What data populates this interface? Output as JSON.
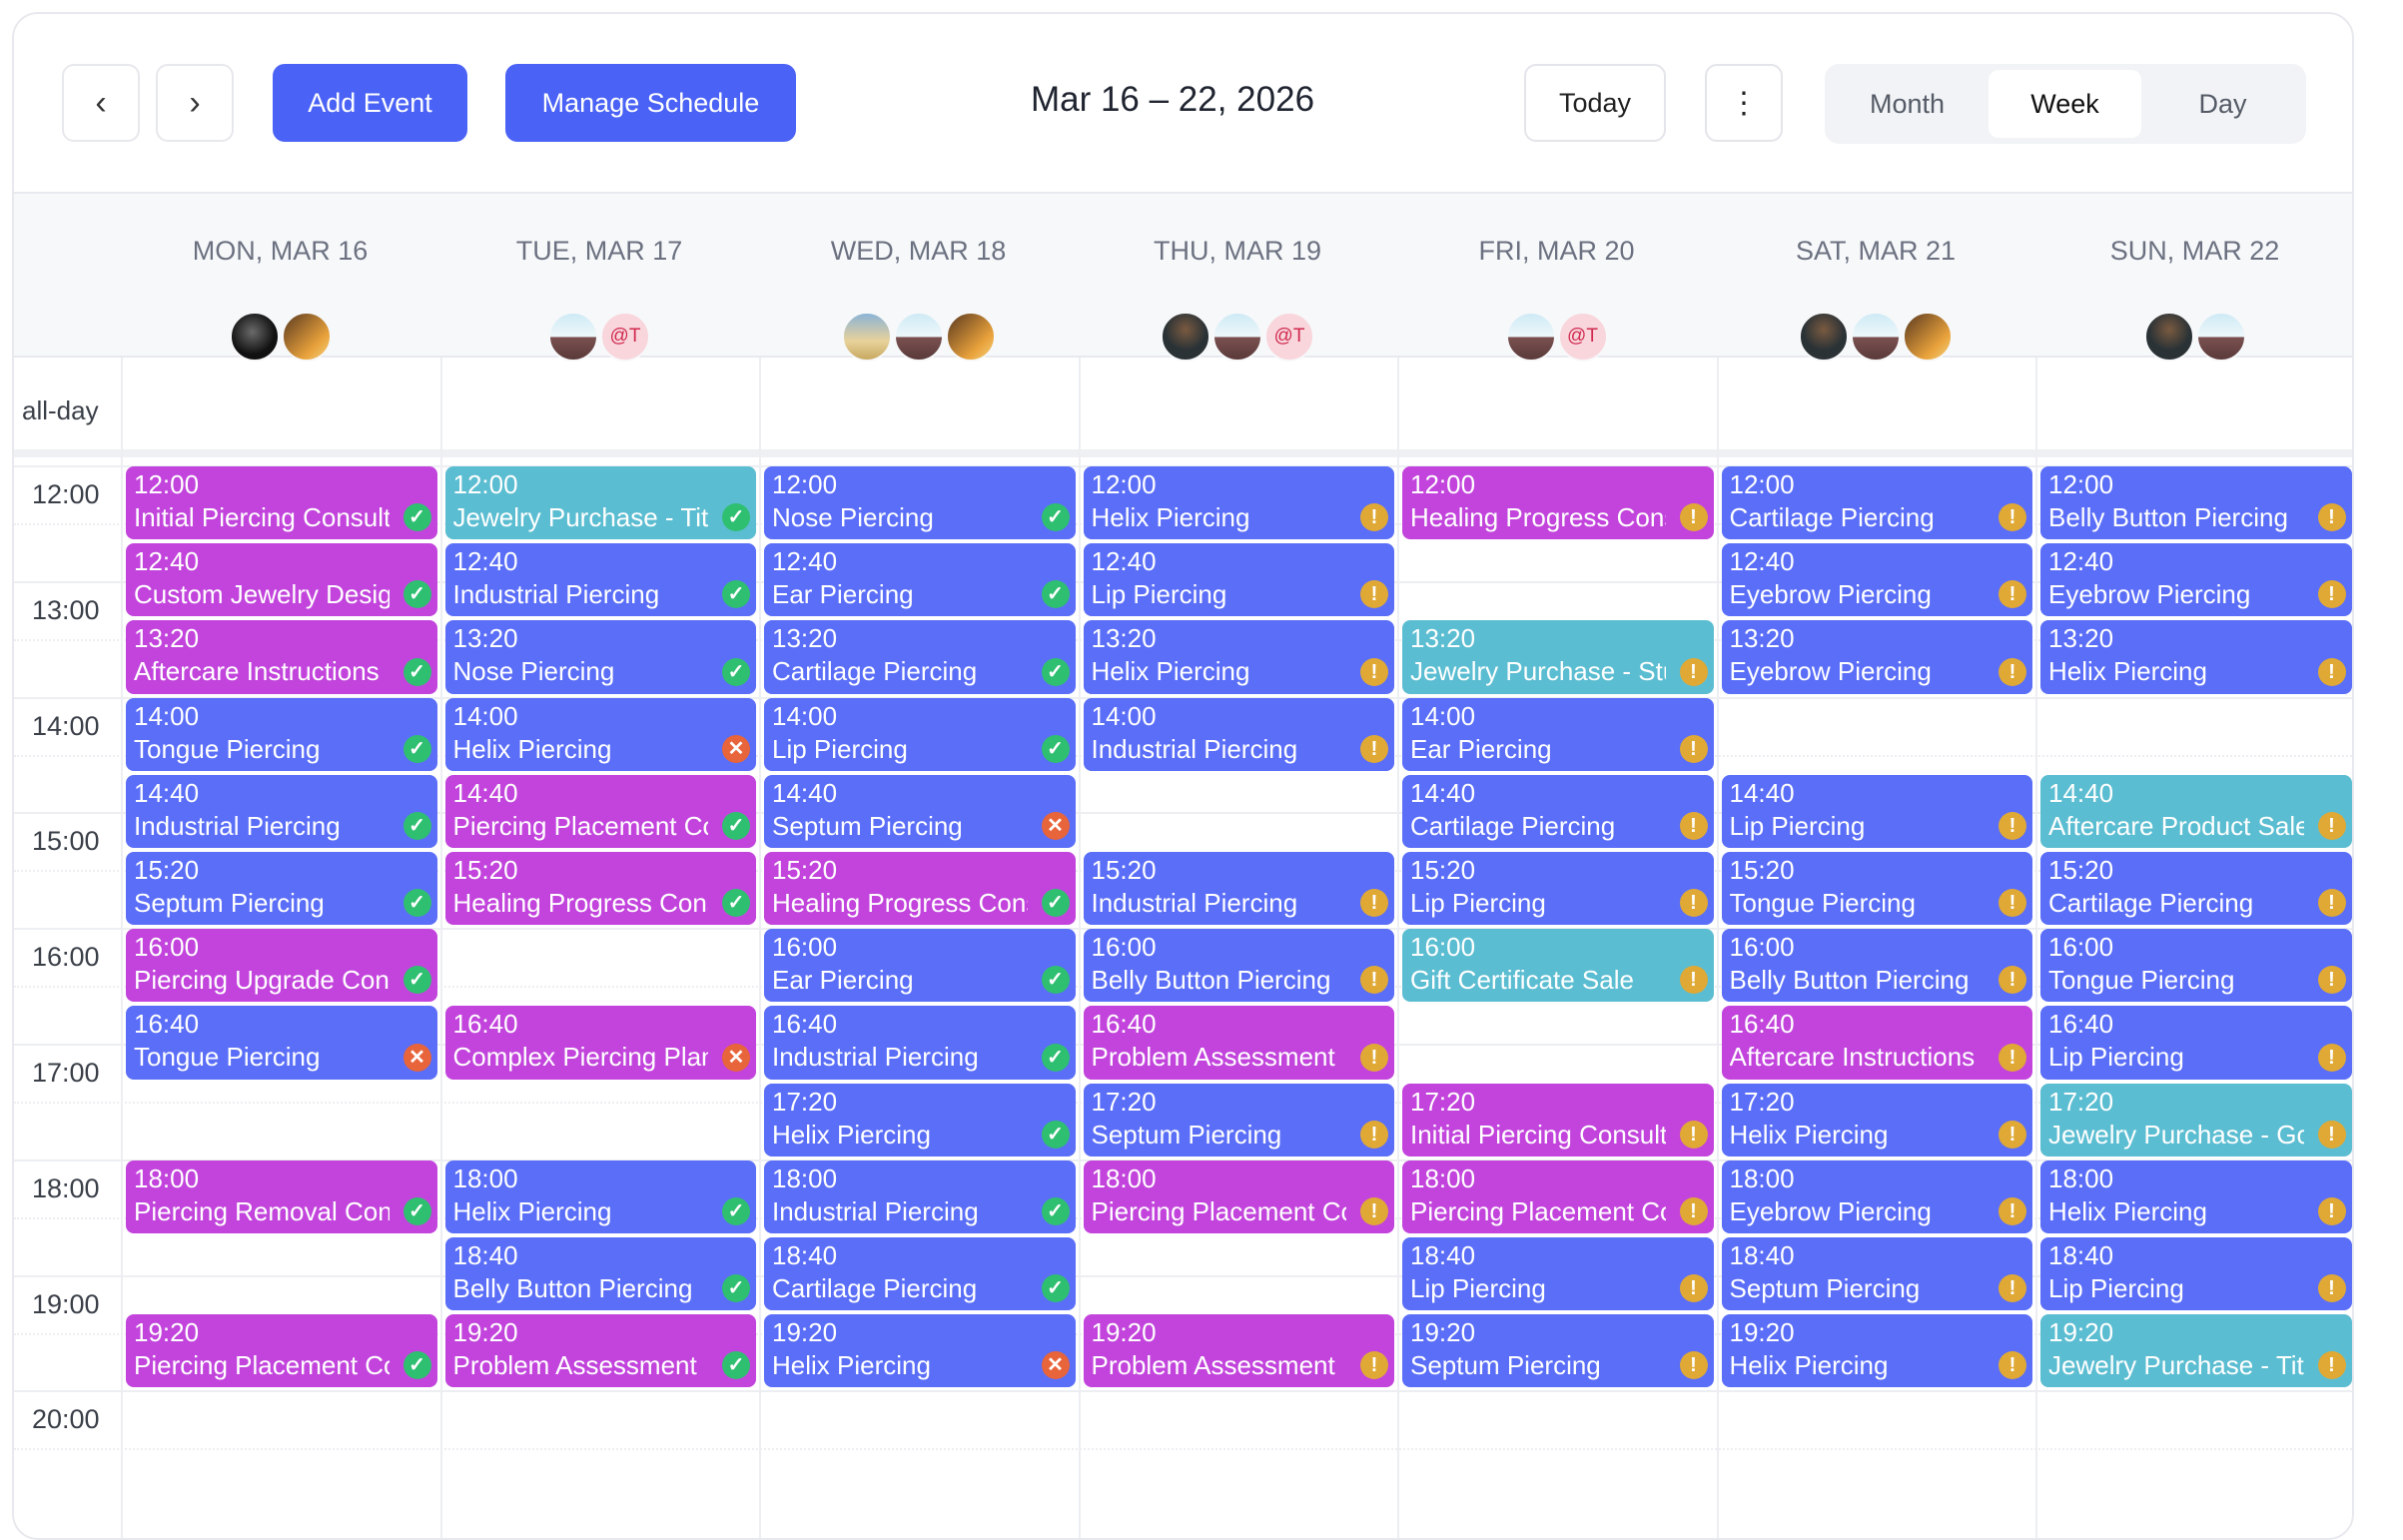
{
  "toolbar": {
    "prev_icon": "chevron-left-icon",
    "next_icon": "chevron-right-icon",
    "add_event": "Add Event",
    "manage_schedule": "Manage Schedule",
    "range_title": "Mar 16 – 22, 2026",
    "today": "Today",
    "more_icon": "kebab-icon",
    "views": [
      "Month",
      "Week",
      "Day"
    ],
    "active_view": "Week"
  },
  "colors": {
    "primary": "#4a62f5",
    "blue": "#5a6ef8",
    "magenta": "#c244dc",
    "teal": "#5bbdd1",
    "confirmed": "#2fbf71",
    "cancelled": "#e8643a",
    "pending": "#e0a935"
  },
  "all_day_label": "all-day",
  "hours": [
    "12:00",
    "13:00",
    "14:00",
    "15:00",
    "16:00",
    "17:00",
    "18:00",
    "19:00",
    "20:00"
  ],
  "days": [
    {
      "label": "MON, MAR 16",
      "avatars": [
        {
          "type": "dark"
        },
        {
          "type": "warm"
        }
      ],
      "events": [
        {
          "time": "12:00",
          "title": "Initial Piercing Consultation",
          "color": "magenta",
          "status": "confirmed"
        },
        {
          "time": "12:40",
          "title": "Custom Jewelry Design Consultation",
          "color": "magenta",
          "status": "confirmed"
        },
        {
          "time": "13:20",
          "title": "Aftercare Instructions",
          "color": "magenta",
          "status": "confirmed"
        },
        {
          "time": "14:00",
          "title": "Tongue Piercing",
          "color": "blue",
          "status": "confirmed"
        },
        {
          "time": "14:40",
          "title": "Industrial Piercing",
          "color": "blue",
          "status": "confirmed"
        },
        {
          "time": "15:20",
          "title": "Septum Piercing",
          "color": "blue",
          "status": "confirmed"
        },
        {
          "time": "16:00",
          "title": "Piercing Upgrade Consultation",
          "color": "magenta",
          "status": "confirmed"
        },
        {
          "time": "16:40",
          "title": "Tongue Piercing",
          "color": "blue",
          "status": "cancelled"
        },
        {
          "time": "18:00",
          "title": "Piercing Removal Consultation",
          "color": "magenta",
          "status": "confirmed"
        },
        {
          "time": "19:20",
          "title": "Piercing Placement Consultation",
          "color": "magenta",
          "status": "confirmed"
        }
      ]
    },
    {
      "label": "TUE, MAR 17",
      "avatars": [
        {
          "type": "sky"
        },
        {
          "type": "at",
          "text": "@T"
        }
      ],
      "events": [
        {
          "time": "12:00",
          "title": "Jewelry Purchase - Titanium",
          "color": "teal",
          "status": "confirmed"
        },
        {
          "time": "12:40",
          "title": "Industrial Piercing",
          "color": "blue",
          "status": "confirmed"
        },
        {
          "time": "13:20",
          "title": "Nose Piercing",
          "color": "blue",
          "status": "confirmed"
        },
        {
          "time": "14:00",
          "title": "Helix Piercing",
          "color": "blue",
          "status": "cancelled"
        },
        {
          "time": "14:40",
          "title": "Piercing Placement Consultation",
          "color": "magenta",
          "status": "confirmed"
        },
        {
          "time": "15:20",
          "title": "Healing Progress Consultation",
          "color": "magenta",
          "status": "confirmed"
        },
        {
          "time": "16:40",
          "title": "Complex Piercing Planning",
          "color": "magenta",
          "status": "cancelled"
        },
        {
          "time": "18:00",
          "title": "Helix Piercing",
          "color": "blue",
          "status": "confirmed"
        },
        {
          "time": "18:40",
          "title": "Belly Button Piercing",
          "color": "blue",
          "status": "confirmed"
        },
        {
          "time": "19:20",
          "title": "Problem Assessment",
          "color": "magenta",
          "status": "confirmed"
        }
      ]
    },
    {
      "label": "WED, MAR 18",
      "avatars": [
        {
          "type": "person"
        },
        {
          "type": "sky"
        },
        {
          "type": "warm"
        }
      ],
      "events": [
        {
          "time": "12:00",
          "title": "Nose Piercing",
          "color": "blue",
          "status": "confirmed"
        },
        {
          "time": "12:40",
          "title": "Ear Piercing",
          "color": "blue",
          "status": "confirmed"
        },
        {
          "time": "13:20",
          "title": "Cartilage Piercing",
          "color": "blue",
          "status": "confirmed"
        },
        {
          "time": "14:00",
          "title": "Lip Piercing",
          "color": "blue",
          "status": "confirmed"
        },
        {
          "time": "14:40",
          "title": "Septum Piercing",
          "color": "blue",
          "status": "cancelled"
        },
        {
          "time": "15:20",
          "title": "Healing Progress Consultation",
          "color": "magenta",
          "status": "confirmed"
        },
        {
          "time": "16:00",
          "title": "Ear Piercing",
          "color": "blue",
          "status": "confirmed"
        },
        {
          "time": "16:40",
          "title": "Industrial Piercing",
          "color": "blue",
          "status": "confirmed"
        },
        {
          "time": "17:20",
          "title": "Helix Piercing",
          "color": "blue",
          "status": "confirmed"
        },
        {
          "time": "18:00",
          "title": "Industrial Piercing",
          "color": "blue",
          "status": "confirmed"
        },
        {
          "time": "18:40",
          "title": "Cartilage Piercing",
          "color": "blue",
          "status": "confirmed"
        },
        {
          "time": "19:20",
          "title": "Helix Piercing",
          "color": "blue",
          "status": "cancelled"
        }
      ]
    },
    {
      "label": "THU, MAR 19",
      "avatars": [
        {
          "type": "darkperson"
        },
        {
          "type": "sky"
        },
        {
          "type": "at",
          "text": "@T"
        }
      ],
      "events": [
        {
          "time": "12:00",
          "title": "Helix Piercing",
          "color": "blue",
          "status": "pending"
        },
        {
          "time": "12:40",
          "title": "Lip Piercing",
          "color": "blue",
          "status": "pending"
        },
        {
          "time": "13:20",
          "title": "Helix Piercing",
          "color": "blue",
          "status": "pending"
        },
        {
          "time": "14:00",
          "title": "Industrial Piercing",
          "color": "blue",
          "status": "pending"
        },
        {
          "time": "15:20",
          "title": "Industrial Piercing",
          "color": "blue",
          "status": "pending"
        },
        {
          "time": "16:00",
          "title": "Belly Button Piercing",
          "color": "blue",
          "status": "pending"
        },
        {
          "time": "16:40",
          "title": "Problem Assessment",
          "color": "magenta",
          "status": "pending"
        },
        {
          "time": "17:20",
          "title": "Septum Piercing",
          "color": "blue",
          "status": "pending"
        },
        {
          "time": "18:00",
          "title": "Piercing Placement Consultation",
          "color": "magenta",
          "status": "pending"
        },
        {
          "time": "19:20",
          "title": "Problem Assessment",
          "color": "magenta",
          "status": "pending"
        }
      ]
    },
    {
      "label": "FRI, MAR 20",
      "avatars": [
        {
          "type": "sky"
        },
        {
          "type": "at",
          "text": "@T"
        }
      ],
      "events": [
        {
          "time": "12:00",
          "title": "Healing Progress Consultation",
          "color": "magenta",
          "status": "pending"
        },
        {
          "time": "13:20",
          "title": "Jewelry Purchase - Stud",
          "color": "teal",
          "status": "pending"
        },
        {
          "time": "14:00",
          "title": "Ear Piercing",
          "color": "blue",
          "status": "pending"
        },
        {
          "time": "14:40",
          "title": "Cartilage Piercing",
          "color": "blue",
          "status": "pending"
        },
        {
          "time": "15:20",
          "title": "Lip Piercing",
          "color": "blue",
          "status": "pending"
        },
        {
          "time": "16:00",
          "title": "Gift Certificate Sale",
          "color": "teal",
          "status": "pending"
        },
        {
          "time": "17:20",
          "title": "Initial Piercing Consultation",
          "color": "magenta",
          "status": "pending"
        },
        {
          "time": "18:00",
          "title": "Piercing Placement Consultation",
          "color": "magenta",
          "status": "pending"
        },
        {
          "time": "18:40",
          "title": "Lip Piercing",
          "color": "blue",
          "status": "pending"
        },
        {
          "time": "19:20",
          "title": "Septum Piercing",
          "color": "blue",
          "status": "pending"
        }
      ]
    },
    {
      "label": "SAT, MAR 21",
      "avatars": [
        {
          "type": "darkperson"
        },
        {
          "type": "sky"
        },
        {
          "type": "warm"
        }
      ],
      "events": [
        {
          "time": "12:00",
          "title": "Cartilage Piercing",
          "color": "blue",
          "status": "pending"
        },
        {
          "time": "12:40",
          "title": "Eyebrow Piercing",
          "color": "blue",
          "status": "pending"
        },
        {
          "time": "13:20",
          "title": "Eyebrow Piercing",
          "color": "blue",
          "status": "pending"
        },
        {
          "time": "14:40",
          "title": "Lip Piercing",
          "color": "blue",
          "status": "pending"
        },
        {
          "time": "15:20",
          "title": "Tongue Piercing",
          "color": "blue",
          "status": "pending"
        },
        {
          "time": "16:00",
          "title": "Belly Button Piercing",
          "color": "blue",
          "status": "pending"
        },
        {
          "time": "16:40",
          "title": "Aftercare Instructions",
          "color": "magenta",
          "status": "pending"
        },
        {
          "time": "17:20",
          "title": "Helix Piercing",
          "color": "blue",
          "status": "pending"
        },
        {
          "time": "18:00",
          "title": "Eyebrow Piercing",
          "color": "blue",
          "status": "pending"
        },
        {
          "time": "18:40",
          "title": "Septum Piercing",
          "color": "blue",
          "status": "pending"
        },
        {
          "time": "19:20",
          "title": "Helix Piercing",
          "color": "blue",
          "status": "pending"
        }
      ]
    },
    {
      "label": "SUN, MAR 22",
      "avatars": [
        {
          "type": "darkperson"
        },
        {
          "type": "sky"
        }
      ],
      "events": [
        {
          "time": "12:00",
          "title": "Belly Button Piercing",
          "color": "blue",
          "status": "pending"
        },
        {
          "time": "12:40",
          "title": "Eyebrow Piercing",
          "color": "blue",
          "status": "pending"
        },
        {
          "time": "13:20",
          "title": "Helix Piercing",
          "color": "blue",
          "status": "pending"
        },
        {
          "time": "14:40",
          "title": "Aftercare Product Sale",
          "color": "teal",
          "status": "pending"
        },
        {
          "time": "15:20",
          "title": "Cartilage Piercing",
          "color": "blue",
          "status": "pending"
        },
        {
          "time": "16:00",
          "title": "Tongue Piercing",
          "color": "blue",
          "status": "pending"
        },
        {
          "time": "16:40",
          "title": "Lip Piercing",
          "color": "blue",
          "status": "pending"
        },
        {
          "time": "17:20",
          "title": "Jewelry Purchase - Gold",
          "color": "teal",
          "status": "pending"
        },
        {
          "time": "18:00",
          "title": "Helix Piercing",
          "color": "blue",
          "status": "pending"
        },
        {
          "time": "18:40",
          "title": "Lip Piercing",
          "color": "blue",
          "status": "pending"
        },
        {
          "time": "19:20",
          "title": "Jewelry Purchase - Titanium",
          "color": "teal",
          "status": "pending"
        }
      ]
    }
  ]
}
